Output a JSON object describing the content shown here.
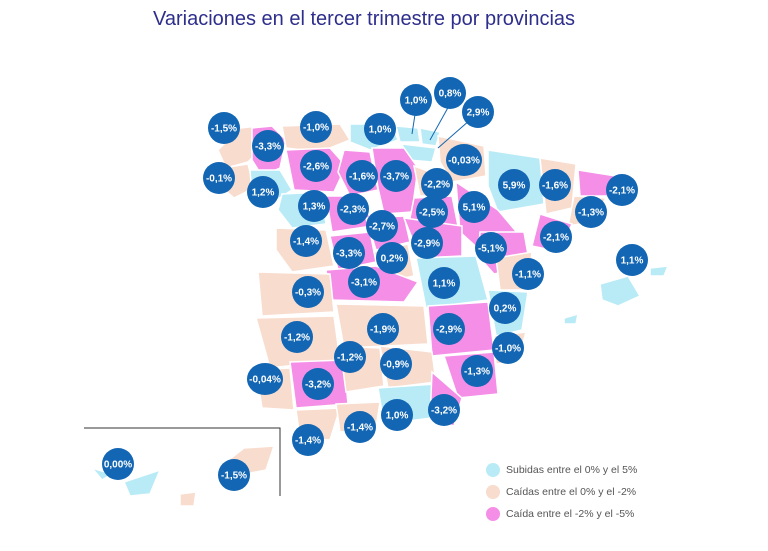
{
  "title": "Variaciones en el tercer trimestre por provincias",
  "colors": {
    "rise": "#b9ebf6",
    "fall_small": "#f8dccd",
    "fall_big": "#f58ee6",
    "badge": "#1366b3",
    "border": "#ffffff"
  },
  "legend": [
    {
      "label": "Subidas entre el 0% y el 5%",
      "color": "#b9ebf6"
    },
    {
      "label": "Caídas entre el 0% y el -2%",
      "color": "#f8dccd"
    },
    {
      "label": "Caída entre el -2% y el -5%",
      "color": "#f58ee6"
    }
  ],
  "provinces": [
    {
      "name": "A Coruña",
      "value": "-1,5%"
    },
    {
      "name": "Lugo",
      "value": "-3,3%"
    },
    {
      "name": "Asturias",
      "value": "-1,0%"
    },
    {
      "name": "Cantabria",
      "value": "1,0%"
    },
    {
      "name": "Vizcaya",
      "value": "1,0%"
    },
    {
      "name": "Guipúzcoa",
      "value": "0,8%"
    },
    {
      "name": "Álava",
      "value": "2,9%"
    },
    {
      "name": "Pontevedra",
      "value": "-0,1%"
    },
    {
      "name": "Ourense",
      "value": "1,2%"
    },
    {
      "name": "León",
      "value": "-2,6%"
    },
    {
      "name": "Palencia",
      "value": "-1,6%"
    },
    {
      "name": "Burgos",
      "value": "-3,7%"
    },
    {
      "name": "Navarra",
      "value": "-0,03%"
    },
    {
      "name": "La Rioja",
      "value": "-2,2%"
    },
    {
      "name": "Huesca",
      "value": "5,9%"
    },
    {
      "name": "Lleida",
      "value": "-1,6%"
    },
    {
      "name": "Girona",
      "value": "-2,1%"
    },
    {
      "name": "Barcelona",
      "value": "-1,3%"
    },
    {
      "name": "Zamora",
      "value": "1,3%"
    },
    {
      "name": "Valladolid",
      "value": "-2,3%"
    },
    {
      "name": "Segovia",
      "value": "-2,7%"
    },
    {
      "name": "Soria",
      "value": "-2,5%"
    },
    {
      "name": "Zaragoza",
      "value": "5,1%"
    },
    {
      "name": "Tarragona",
      "value": "-2,1%"
    },
    {
      "name": "Salamanca",
      "value": "-1,4%"
    },
    {
      "name": "Ávila",
      "value": "-3,3%"
    },
    {
      "name": "Guadalajara",
      "value": "-2,9%"
    },
    {
      "name": "Teruel",
      "value": "-5,1%"
    },
    {
      "name": "Castellón",
      "value": "-1,1%"
    },
    {
      "name": "Madrid",
      "value": "0,2%"
    },
    {
      "name": "Toledo",
      "value": "-3,1%"
    },
    {
      "name": "Cuenca",
      "value": "1,1%"
    },
    {
      "name": "Baleares",
      "value": "1,1%"
    },
    {
      "name": "Cáceres",
      "value": "-0,3%"
    },
    {
      "name": "Valencia",
      "value": "0,2%"
    },
    {
      "name": "Badajoz",
      "value": "-1,2%"
    },
    {
      "name": "Ciudad Real",
      "value": "-1,9%"
    },
    {
      "name": "Albacete",
      "value": "-2,9%"
    },
    {
      "name": "Alicante",
      "value": "-1,0%"
    },
    {
      "name": "Huelva",
      "value": "-0,04%"
    },
    {
      "name": "Córdoba",
      "value": "-1,2%"
    },
    {
      "name": "Jaén",
      "value": "-0,9%"
    },
    {
      "name": "Murcia",
      "value": "-1,3%"
    },
    {
      "name": "Sevilla",
      "value": "-3,2%"
    },
    {
      "name": "Granada",
      "value": "1,0%"
    },
    {
      "name": "Almería",
      "value": "-3,2%"
    },
    {
      "name": "Cádiz",
      "value": "-1,4%"
    },
    {
      "name": "Málaga",
      "value": "-1,4%"
    },
    {
      "name": "Santa Cruz de Tenerife",
      "value": "0,00%"
    },
    {
      "name": "Las Palmas",
      "value": "-1,5%"
    }
  ]
}
